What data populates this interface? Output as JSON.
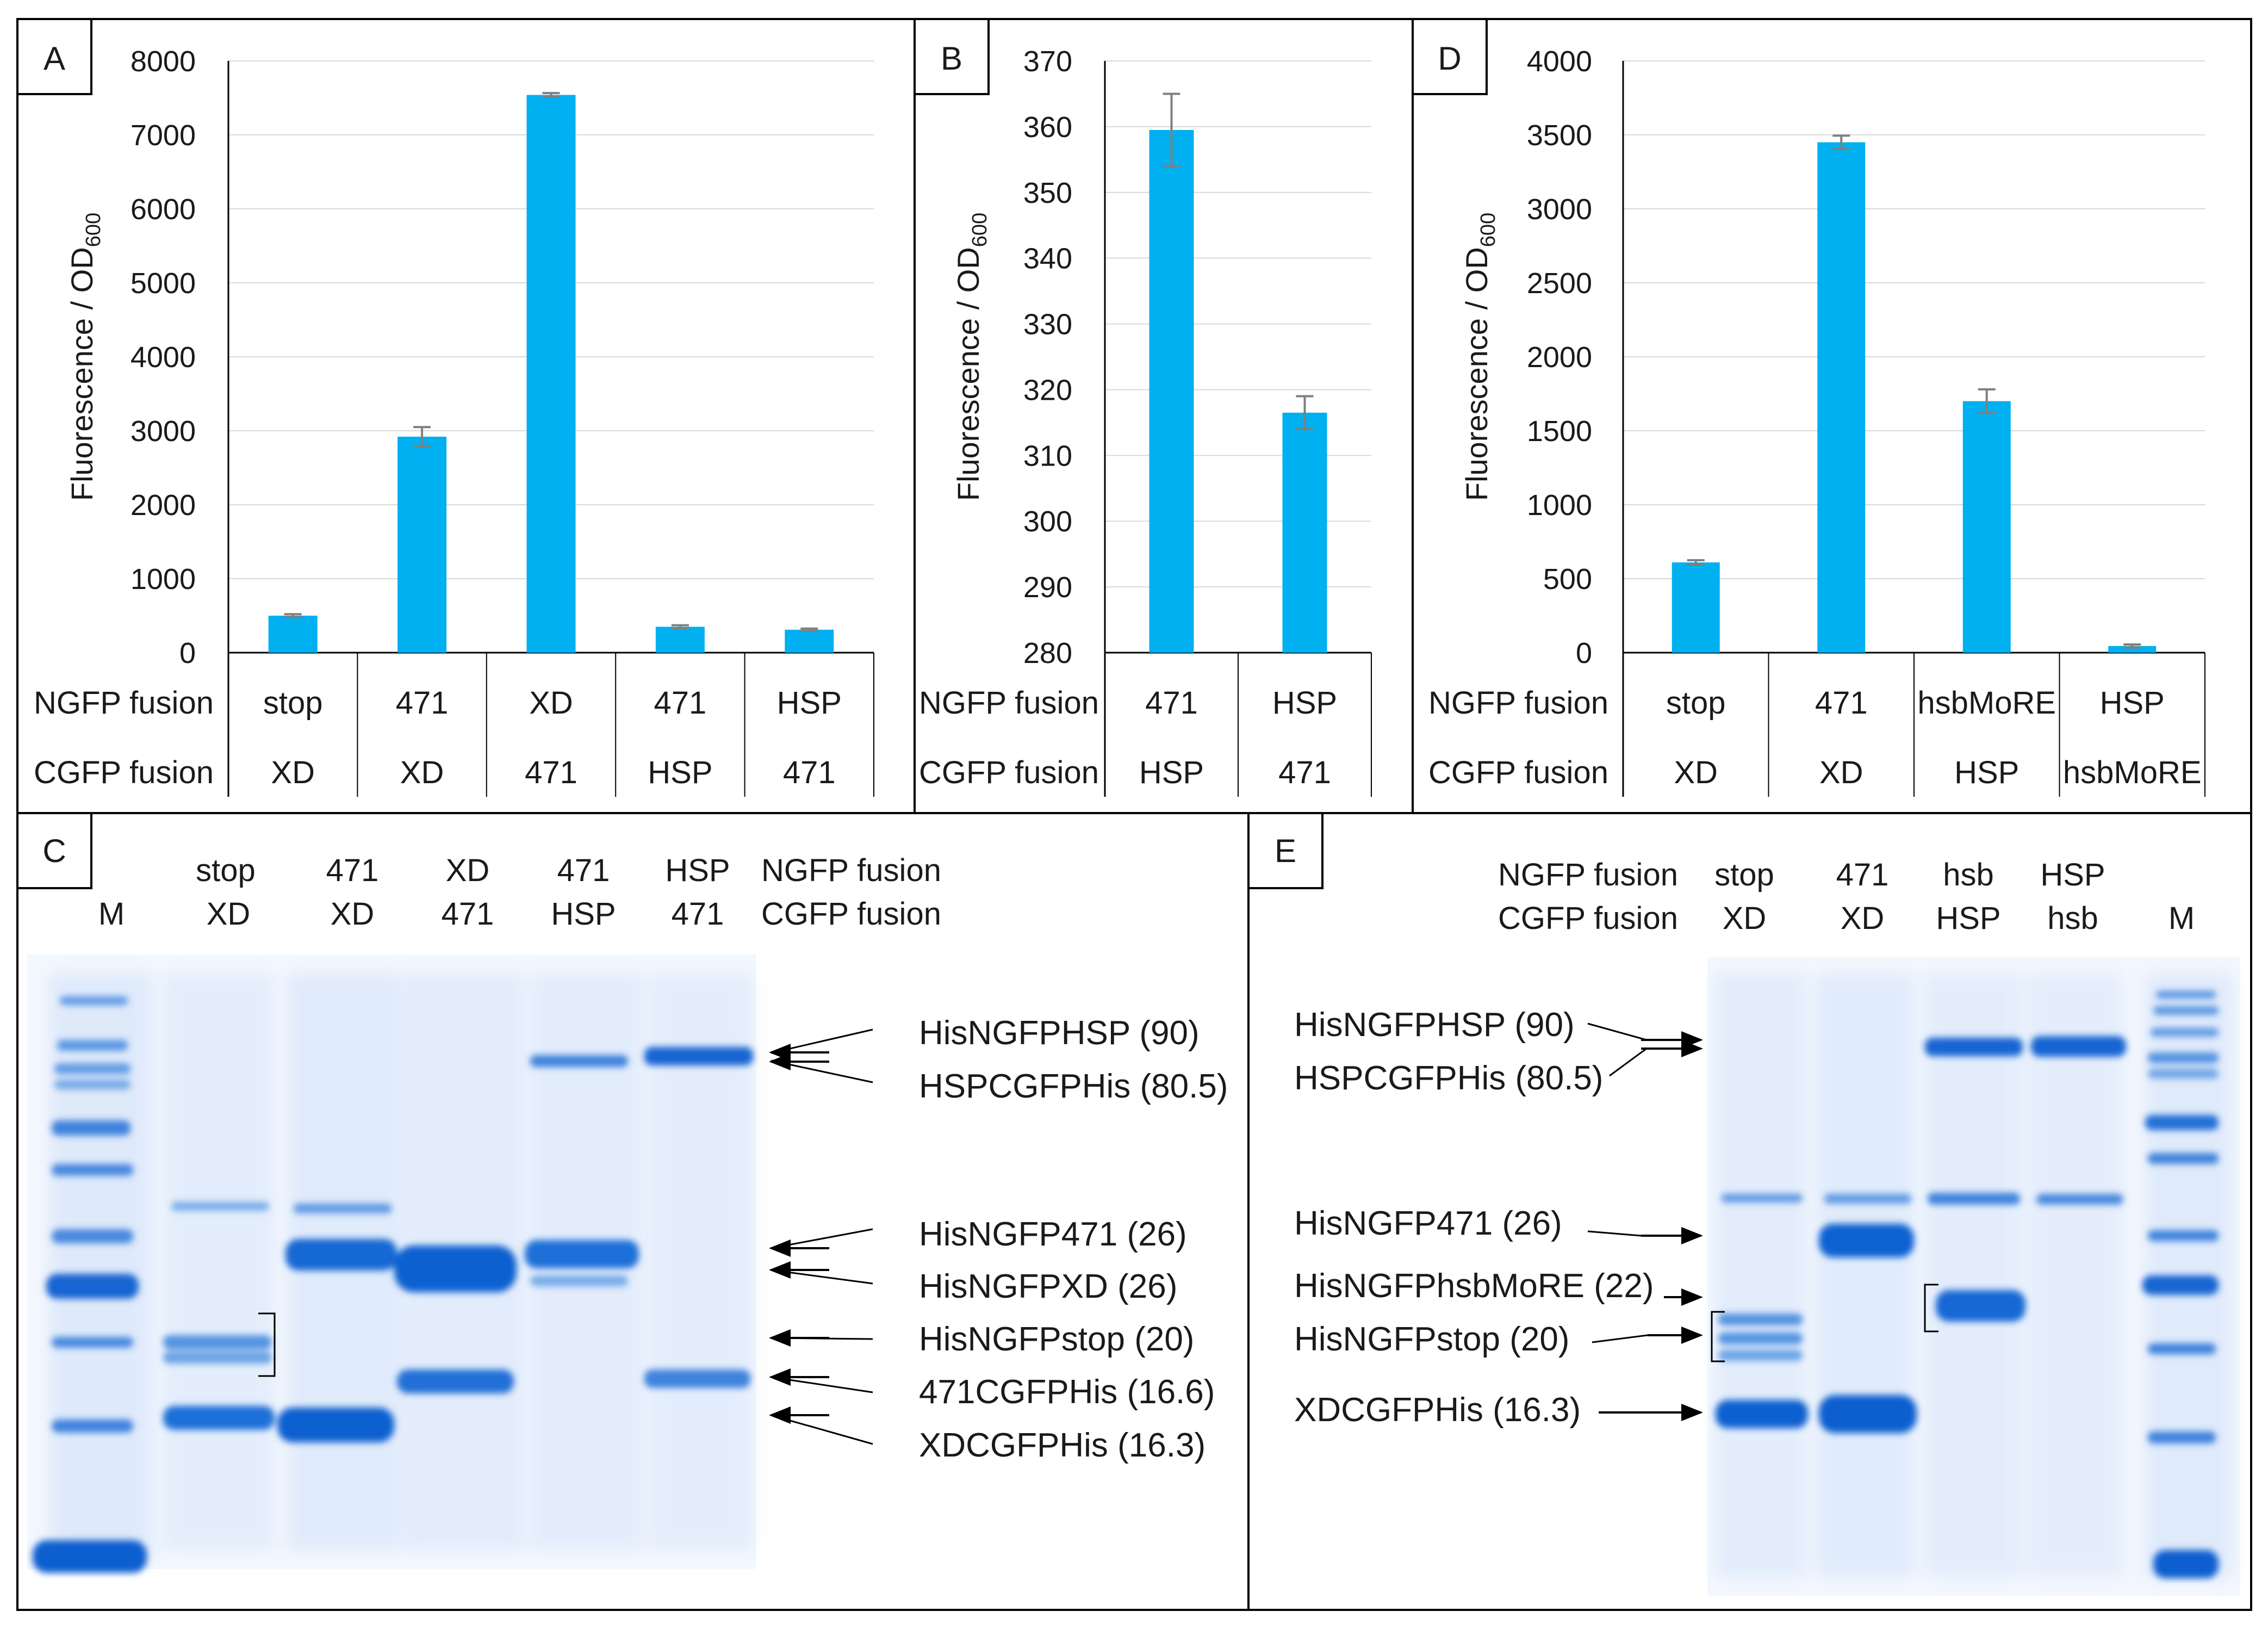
{
  "panel_labels": {
    "A": "A",
    "B": "B",
    "C": "C",
    "D": "D",
    "E": "E"
  },
  "colors": {
    "bar": "#00b0f0",
    "error": "#7f7f7f",
    "gel_background": "#f4f8fe",
    "band": "#1a6fd8",
    "frame": "#000000"
  },
  "table_row_labels": {
    "ngfp": "NGFP fusion",
    "cgfp": "CGFP fusion"
  },
  "chart_data": [
    {
      "id": "A",
      "type": "bar",
      "title": "",
      "ylabel_main": "Fluorescence / OD",
      "ylabel_sub": "600",
      "xlabel": "",
      "ylim": [
        0,
        8000
      ],
      "yticks": [
        "0",
        "1000",
        "2000",
        "3000",
        "4000",
        "5000",
        "6000",
        "7000",
        "8000"
      ],
      "ngfp_fusion": [
        "stop",
        "471",
        "XD",
        "471",
        "HSP"
      ],
      "cgfp_fusion": [
        "XD",
        "XD",
        "471",
        "HSP",
        "471"
      ],
      "values": [
        500,
        2920,
        7540,
        350,
        310
      ],
      "errors": [
        20,
        130,
        25,
        20,
        15
      ]
    },
    {
      "id": "B",
      "type": "bar",
      "title": "",
      "ylabel_main": "Fluorescence / OD",
      "ylabel_sub": "600",
      "xlabel": "",
      "ylim": [
        280,
        370
      ],
      "yticks": [
        "280",
        "290",
        "300",
        "310",
        "320",
        "330",
        "340",
        "350",
        "360",
        "370"
      ],
      "ngfp_fusion": [
        "471",
        "HSP"
      ],
      "cgfp_fusion": [
        "HSP",
        "471"
      ],
      "values": [
        359.5,
        316.5
      ],
      "errors": [
        5.5,
        2.5
      ]
    },
    {
      "id": "D",
      "type": "bar",
      "title": "",
      "ylabel_main": "Fluorescence / OD",
      "ylabel_sub": "600",
      "xlabel": "",
      "ylim": [
        0,
        4000
      ],
      "yticks": [
        "0",
        "500",
        "1000",
        "1500",
        "2000",
        "2500",
        "3000",
        "3500",
        "4000"
      ],
      "ngfp_fusion": [
        "stop",
        "471",
        "hsbMoRE",
        "HSP"
      ],
      "cgfp_fusion": [
        "XD",
        "XD",
        "HSP",
        "hsbMoRE"
      ],
      "values": [
        610,
        3450,
        1700,
        45
      ],
      "errors": [
        15,
        45,
        80,
        10
      ]
    }
  ],
  "gel_C": {
    "marker": "M",
    "lane_top": [
      "stop",
      "471",
      "XD",
      "471",
      "HSP"
    ],
    "lane_bottom": [
      "XD",
      "XD",
      "471",
      "HSP",
      "471"
    ],
    "row_label_top": "NGFP fusion",
    "row_label_bottom": "CGFP fusion",
    "annotations": [
      "HisNGFPHSP (90)",
      "HSPCGFPHis (80.5)",
      "HisNGFP471 (26)",
      "HisNGFPXD (26)",
      "HisNGFPstop (20)",
      "471CGFPHis (16.6)",
      "XDCGFPHis (16.3)"
    ]
  },
  "gel_E": {
    "marker": "M",
    "lane_top": [
      "stop",
      "471",
      "hsb",
      "HSP"
    ],
    "lane_bottom": [
      "XD",
      "XD",
      "HSP",
      "hsb"
    ],
    "row_label_top": "NGFP fusion",
    "row_label_bottom": "CGFP fusion",
    "annotations": [
      "HisNGFPHSP (90)",
      "HSPCGFPHis (80.5)",
      "HisNGFP471 (26)",
      "HisNGFPhsbMoRE (22)",
      "HisNGFPstop (20)",
      "XDCGFPHis (16.3)"
    ]
  }
}
